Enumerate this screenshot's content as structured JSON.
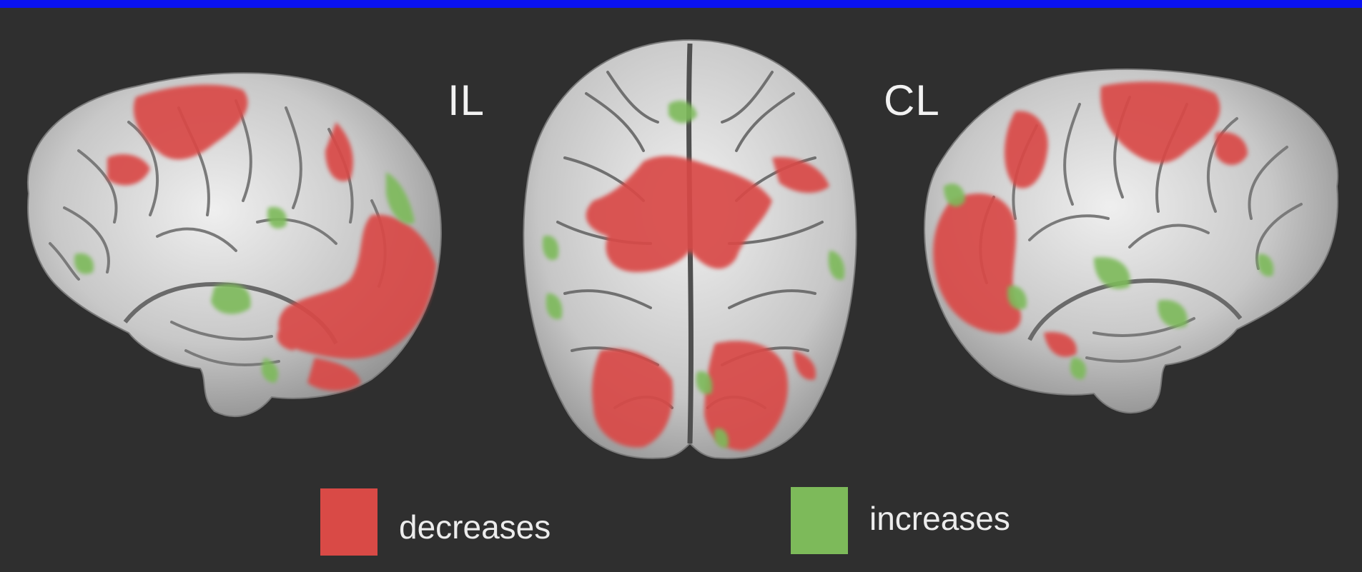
{
  "labels": {
    "ipsilateral": "IL",
    "contralateral": "CL"
  },
  "legend": [
    {
      "label": "decreases",
      "color": "#d94a46"
    },
    {
      "label": "increases",
      "color": "#7dba5a"
    }
  ],
  "colors": {
    "background": "#2f2f2f",
    "top_bar": "#0a12f0",
    "brain_surface": "#c9c9c9",
    "sulcus": "#6f6f6f",
    "activation_decrease": "#d94a46",
    "activation_increase": "#7dba5a"
  },
  "views": [
    "left-lateral-brain",
    "dorsal-brain",
    "right-lateral-brain"
  ]
}
